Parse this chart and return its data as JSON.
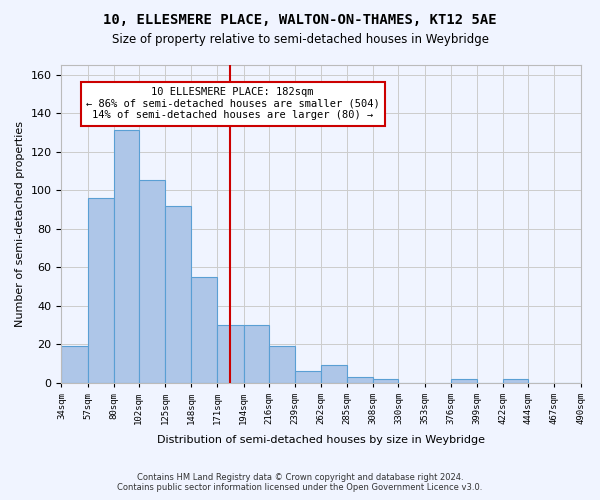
{
  "title": "10, ELLESMERE PLACE, WALTON-ON-THAMES, KT12 5AE",
  "subtitle": "Size of property relative to semi-detached houses in Weybridge",
  "xlabel": "Distribution of semi-detached houses by size in Weybridge",
  "ylabel": "Number of semi-detached properties",
  "footer_line1": "Contains HM Land Registry data © Crown copyright and database right 2024.",
  "footer_line2": "Contains public sector information licensed under the Open Government Licence v3.0.",
  "annotation_title": "10 ELLESMERE PLACE: 182sqm",
  "annotation_line1": "← 86% of semi-detached houses are smaller (504)",
  "annotation_line2": "14% of semi-detached houses are larger (80) →",
  "bar_values": [
    19,
    96,
    131,
    105,
    92,
    55,
    30,
    30,
    19,
    6,
    9,
    3,
    2,
    0,
    0,
    2,
    0,
    2,
    0,
    0
  ],
  "categories": [
    "34sqm",
    "57sqm",
    "80sqm",
    "102sqm",
    "125sqm",
    "148sqm",
    "171sqm",
    "194sqm",
    "216sqm",
    "239sqm",
    "262sqm",
    "285sqm",
    "308sqm",
    "330sqm",
    "353sqm",
    "376sqm",
    "399sqm",
    "422sqm",
    "444sqm",
    "467sqm",
    "490sqm"
  ],
  "bar_color": "#aec6e8",
  "bar_edge_color": "#5a9fd4",
  "vline_x": 182,
  "vline_color": "#cc0000",
  "annotation_box_color": "#cc0000",
  "grid_color": "#cccccc",
  "background_color": "#f0f4ff",
  "ylim": [
    0,
    165
  ],
  "bin_edges": [
    34,
    57,
    80,
    102,
    125,
    148,
    171,
    194,
    216,
    239,
    262,
    285,
    308,
    330,
    353,
    376,
    399,
    422,
    444,
    467,
    490
  ]
}
